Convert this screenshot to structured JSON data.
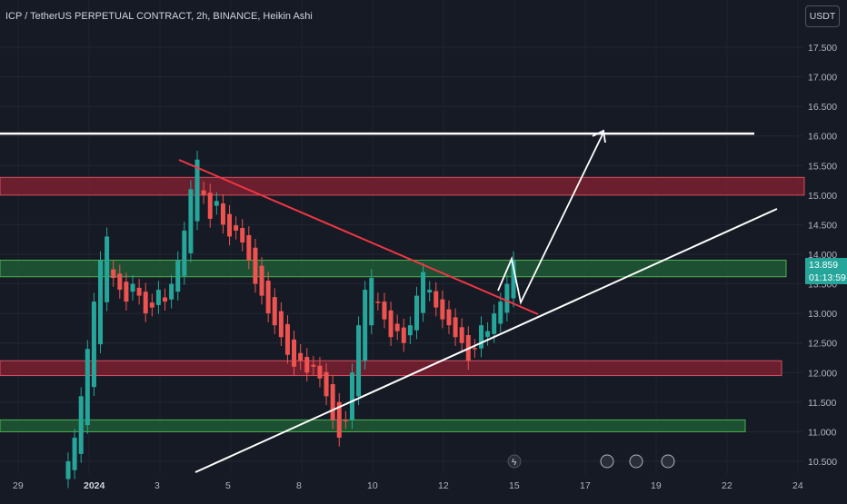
{
  "header": {
    "title": "ICP / TetherUS PERPETUAL CONTRACT, 2h, BINANCE, Heikin Ashi"
  },
  "price_scale": {
    "currency": "USDT",
    "last_price": "13.859",
    "countdown": "01:13:59"
  },
  "colors": {
    "background": "#161a25",
    "up": "#26a69a",
    "down": "#ef5350",
    "resistance_zone": "#7a2030",
    "support_zone": "#1e5a35",
    "trendline_down": "#f23645",
    "trendline_up": "#ffffff",
    "level_line": "#ffffff",
    "arrow": "#ffffff"
  },
  "chart_data": {
    "type": "candlestick",
    "style": "Heikin Ashi",
    "interval": "2h",
    "y_axis": {
      "ticks": [
        "10.500",
        "11.000",
        "11.500",
        "12.000",
        "12.500",
        "13.000",
        "13.500",
        "14.000",
        "14.500",
        "15.000",
        "15.500",
        "16.000",
        "16.500",
        "17.000",
        "17.500"
      ],
      "range": [
        10.4,
        18.1
      ]
    },
    "x_axis": {
      "ticks": [
        "29",
        "2024",
        "3",
        "5",
        "8",
        "10",
        "12",
        "15",
        "17",
        "19",
        "22",
        "24"
      ]
    },
    "series": [
      {
        "value": 10.5,
        "up": true
      },
      {
        "value": 10.9,
        "up": true
      },
      {
        "value": 11.6,
        "up": true
      },
      {
        "value": 12.4,
        "up": true
      },
      {
        "value": 13.2,
        "up": true
      },
      {
        "value": 13.9,
        "up": true
      },
      {
        "value": 14.3,
        "up": true
      },
      {
        "value": 13.6,
        "up": false
      },
      {
        "value": 13.4,
        "up": false
      },
      {
        "value": 13.2,
        "up": false
      },
      {
        "value": 13.5,
        "up": true
      },
      {
        "value": 13.3,
        "up": false
      },
      {
        "value": 13.0,
        "up": false
      },
      {
        "value": 13.1,
        "up": true
      },
      {
        "value": 13.4,
        "up": true
      },
      {
        "value": 13.2,
        "up": false
      },
      {
        "value": 13.5,
        "up": true
      },
      {
        "value": 13.9,
        "up": true
      },
      {
        "value": 14.4,
        "up": true
      },
      {
        "value": 15.1,
        "up": true
      },
      {
        "value": 15.6,
        "up": true
      },
      {
        "value": 15.0,
        "up": false
      },
      {
        "value": 14.6,
        "up": false
      },
      {
        "value": 14.9,
        "up": true
      },
      {
        "value": 14.5,
        "up": false
      },
      {
        "value": 14.3,
        "up": false
      },
      {
        "value": 14.4,
        "up": true
      },
      {
        "value": 14.2,
        "up": false
      },
      {
        "value": 13.9,
        "up": false
      },
      {
        "value": 13.5,
        "up": false
      },
      {
        "value": 13.3,
        "up": false
      },
      {
        "value": 13.0,
        "up": false
      },
      {
        "value": 12.8,
        "up": false
      },
      {
        "value": 12.6,
        "up": false
      },
      {
        "value": 12.3,
        "up": false
      },
      {
        "value": 12.1,
        "up": false
      },
      {
        "value": 12.2,
        "up": true
      },
      {
        "value": 12.0,
        "up": false
      },
      {
        "value": 12.1,
        "up": true
      },
      {
        "value": 11.9,
        "up": false
      },
      {
        "value": 11.6,
        "up": false
      },
      {
        "value": 11.2,
        "up": false
      },
      {
        "value": 10.9,
        "up": false
      },
      {
        "value": 11.2,
        "up": true
      },
      {
        "value": 12.0,
        "up": true
      },
      {
        "value": 12.8,
        "up": true
      },
      {
        "value": 13.4,
        "up": true
      },
      {
        "value": 13.6,
        "up": true
      },
      {
        "value": 13.2,
        "up": false
      },
      {
        "value": 12.9,
        "up": false
      },
      {
        "value": 12.6,
        "up": false
      },
      {
        "value": 12.7,
        "up": true
      },
      {
        "value": 12.5,
        "up": false
      },
      {
        "value": 12.8,
        "up": true
      },
      {
        "value": 13.3,
        "up": true
      },
      {
        "value": 13.7,
        "up": true
      },
      {
        "value": 13.4,
        "up": false
      },
      {
        "value": 13.1,
        "up": false
      },
      {
        "value": 12.9,
        "up": false
      },
      {
        "value": 12.8,
        "up": false
      },
      {
        "value": 12.6,
        "up": false
      },
      {
        "value": 12.5,
        "up": false
      },
      {
        "value": 12.2,
        "up": false
      },
      {
        "value": 12.4,
        "up": true
      },
      {
        "value": 12.8,
        "up": true
      },
      {
        "value": 12.7,
        "up": false
      },
      {
        "value": 13.0,
        "up": true
      },
      {
        "value": 13.2,
        "up": true
      },
      {
        "value": 13.5,
        "up": true
      },
      {
        "value": 13.9,
        "up": true
      }
    ],
    "zones": [
      {
        "name": "resistance",
        "from": 15.0,
        "to": 15.3,
        "color": "#7a2030"
      },
      {
        "name": "support-upper",
        "from": 13.62,
        "to": 13.9,
        "color": "#1e5a35"
      },
      {
        "name": "support-mid",
        "from": 11.95,
        "to": 12.2,
        "color": "#7a2030"
      },
      {
        "name": "support-low",
        "from": 11.0,
        "to": 11.2,
        "color": "#1e5a35"
      }
    ],
    "horizontal_level": 16.04,
    "annotations": [
      "descending trendline",
      "ascending trendline",
      "projected path to 16.0"
    ]
  }
}
